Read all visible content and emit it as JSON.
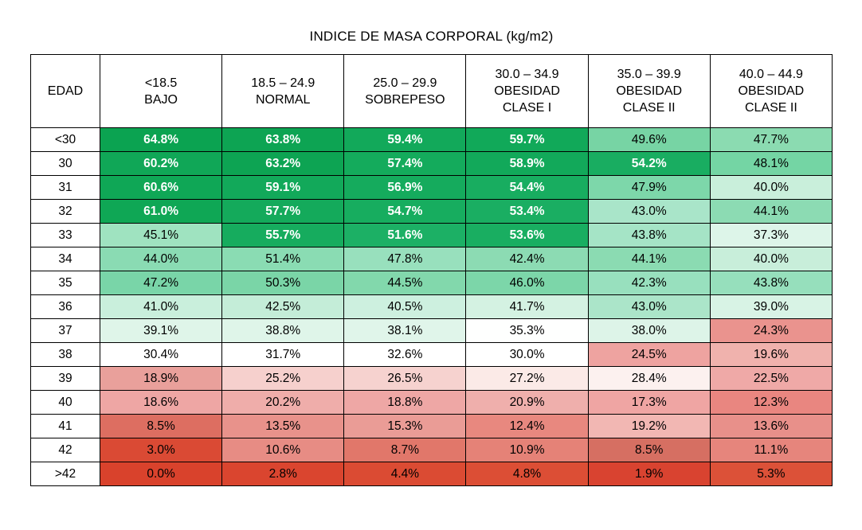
{
  "chart_data": {
    "type": "heatmap",
    "title": "INDICE DE MASA CORPORAL (kg/m2)",
    "row_header": "EDAD",
    "columns": [
      {
        "line1": "<18.5",
        "line2": "BAJO",
        "line3": ""
      },
      {
        "line1": "18.5 – 24.9",
        "line2": "NORMAL",
        "line3": ""
      },
      {
        "line1": "25.0 – 29.9",
        "line2": "SOBREPESO",
        "line3": ""
      },
      {
        "line1": "30.0 – 34.9",
        "line2": "OBESIDAD",
        "line3": "CLASE I"
      },
      {
        "line1": "35.0 – 39.9",
        "line2": "OBESIDAD",
        "line3": "CLASE II"
      },
      {
        "line1": "40.0 – 44.9",
        "line2": "OBESIDAD",
        "line3": "CLASE II"
      }
    ],
    "row_labels": [
      "<30",
      "30",
      "31",
      "32",
      "33",
      "34",
      "35",
      "36",
      "37",
      "38",
      "39",
      "40",
      "41",
      "42",
      ">42"
    ],
    "display_unit": "%",
    "values": [
      [
        64.8,
        63.8,
        59.4,
        59.7,
        49.6,
        47.7
      ],
      [
        60.2,
        63.2,
        57.4,
        58.9,
        54.2,
        48.1
      ],
      [
        60.6,
        59.1,
        56.9,
        54.4,
        47.9,
        40.0
      ],
      [
        61.0,
        57.7,
        54.7,
        53.4,
        43.0,
        44.1
      ],
      [
        45.1,
        55.7,
        51.6,
        53.6,
        43.8,
        37.3
      ],
      [
        44.0,
        51.4,
        47.8,
        42.4,
        44.1,
        40.0
      ],
      [
        47.2,
        50.3,
        44.5,
        46.0,
        42.3,
        43.8
      ],
      [
        41.0,
        42.5,
        40.5,
        41.7,
        43.0,
        39.0
      ],
      [
        39.1,
        38.8,
        38.1,
        35.3,
        38.0,
        24.3
      ],
      [
        30.4,
        31.7,
        32.6,
        30.0,
        24.5,
        19.6
      ],
      [
        18.9,
        25.2,
        26.5,
        27.2,
        28.4,
        22.5
      ],
      [
        18.6,
        20.2,
        18.8,
        20.9,
        17.3,
        12.3
      ],
      [
        8.5,
        13.5,
        15.3,
        12.4,
        19.2,
        13.6
      ],
      [
        3.0,
        10.6,
        8.7,
        10.9,
        8.5,
        11.1
      ],
      [
        0.0,
        2.8,
        4.4,
        4.8,
        1.9,
        5.3
      ]
    ],
    "cell_colors": [
      [
        "#0BA351",
        "#0DA453",
        "#12A95A",
        "#11A959",
        "#77D4A4",
        "#8BDBB1"
      ],
      [
        "#10A757",
        "#0DA453",
        "#14AB5C",
        "#12A95A",
        "#19AD61",
        "#74D5A4"
      ],
      [
        "#0FA756",
        "#12A95A",
        "#15AB5D",
        "#18AD60",
        "#7DD7AA",
        "#C9EFDB"
      ],
      [
        "#0FA755",
        "#14AA5B",
        "#17AD5F",
        "#1AAE62",
        "#A9E5C9",
        "#8CDBB3"
      ],
      [
        "#9FE3C0",
        "#16AC5E",
        "#1CB065",
        "#19AE61",
        "#A5E4C6",
        "#DDF5E9"
      ],
      [
        "#8ADBB3",
        "#8ADCB3",
        "#98E0BD",
        "#8CDBB3",
        "#8BDBB2",
        "#C8EEDA"
      ],
      [
        "#79D5A8",
        "#7AD5A7",
        "#82D8AC",
        "#7CD6A9",
        "#98E0BE",
        "#96DFBC"
      ],
      [
        "#C9EFDC",
        "#C4EDD8",
        "#CDF0DF",
        "#D4F2E2",
        "#ABE5C9",
        "#D8F3E5"
      ],
      [
        "#DFF5E9",
        "#DFF5E9",
        "#E0F5EA",
        "#FEFFFE",
        "#DDF4E8",
        "#EA938E"
      ],
      [
        "#FFFFFF",
        "#FFFFFF",
        "#FFFFFF",
        "#FFFFFF",
        "#EEA3A0",
        "#F0B2AD"
      ],
      [
        "#E9A09B",
        "#F6D0CD",
        "#F6D2CF",
        "#FBEAE7",
        "#FCF1EF",
        "#EFA9A7"
      ],
      [
        "#EEA6A4",
        "#EFADAA",
        "#EEA7A5",
        "#EFAFAC",
        "#EFA5A3",
        "#E98680"
      ],
      [
        "#DD6E61",
        "#E8928B",
        "#EA9C96",
        "#E8887F",
        "#F2B7B3",
        "#E8908A"
      ],
      [
        "#DA4A34",
        "#E78C84",
        "#E1776A",
        "#E58277",
        "#D66F62",
        "#E6857C"
      ],
      [
        "#D9422C",
        "#DA452F",
        "#DB4B33",
        "#DC4E35",
        "#D94330",
        "#DC5138"
      ]
    ],
    "cell_white_text": [
      [
        1,
        1,
        1,
        1,
        0,
        0
      ],
      [
        1,
        1,
        1,
        1,
        1,
        0
      ],
      [
        1,
        1,
        1,
        1,
        0,
        0
      ],
      [
        1,
        1,
        1,
        1,
        0,
        0
      ],
      [
        0,
        1,
        1,
        1,
        0,
        0
      ],
      [
        0,
        0,
        0,
        0,
        0,
        0
      ],
      [
        0,
        0,
        0,
        0,
        0,
        0
      ],
      [
        0,
        0,
        0,
        0,
        0,
        0
      ],
      [
        0,
        0,
        0,
        0,
        0,
        0
      ],
      [
        0,
        0,
        0,
        0,
        0,
        0
      ],
      [
        0,
        0,
        0,
        0,
        0,
        0
      ],
      [
        0,
        0,
        0,
        0,
        0,
        0
      ],
      [
        0,
        0,
        0,
        0,
        0,
        0
      ],
      [
        0,
        0,
        0,
        0,
        0,
        0
      ],
      [
        0,
        0,
        0,
        0,
        0,
        0
      ]
    ],
    "colors": {
      "max_green": "#0BA351",
      "min_red": "#D9422C",
      "midpoint_white": "#FFFFFF",
      "grid_border": "#000000"
    },
    "layout": {
      "grid": true,
      "legend": "none"
    }
  }
}
